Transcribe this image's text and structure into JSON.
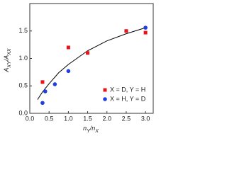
{
  "chart_data": {
    "type": "scatter",
    "xlabel": [
      "n",
      "Y",
      "/n",
      "X"
    ],
    "ylabel": [
      "A",
      "XY",
      "/A",
      "XX"
    ],
    "xlim": [
      0,
      3.2
    ],
    "ylim": [
      0,
      2.0
    ],
    "xticks": [
      {
        "value": 0,
        "label": "0.0"
      },
      {
        "value": 0.5,
        "label": "0.5"
      },
      {
        "value": 1,
        "label": "1.0"
      },
      {
        "value": 1.5,
        "label": "1.5"
      },
      {
        "value": 2,
        "label": "2.0"
      },
      {
        "value": 2.5,
        "label": "2.5"
      },
      {
        "value": 3,
        "label": "3.0"
      }
    ],
    "yticks": [
      {
        "value": 0,
        "label": "0.0"
      },
      {
        "value": 0.5,
        "label": "0.5"
      },
      {
        "value": 1,
        "label": "1.0"
      },
      {
        "value": 1.5,
        "label": "1.5"
      }
    ],
    "series": [
      {
        "name": "X = D, Y = H",
        "color": "#e8141c",
        "marker": "square",
        "x": [
          0.33,
          1.0,
          1.5,
          2.5,
          3.0
        ],
        "values": [
          0.57,
          1.2,
          1.1,
          1.5,
          1.47
        ]
      },
      {
        "name": "X = H, Y = D",
        "color": "#1f3fe0",
        "marker": "circle",
        "x": [
          0.33,
          0.4,
          0.65,
          1.0,
          3.0
        ],
        "values": [
          0.19,
          0.4,
          0.53,
          0.77,
          1.56
        ]
      }
    ],
    "fit": {
      "color": "#000000",
      "x": [
        0.2,
        0.33,
        0.5,
        0.75,
        1,
        1.5,
        2,
        2.5,
        3
      ],
      "values": [
        0.25,
        0.39,
        0.54,
        0.74,
        0.89,
        1.14,
        1.32,
        1.45,
        1.56
      ]
    },
    "legend": "lower right"
  }
}
